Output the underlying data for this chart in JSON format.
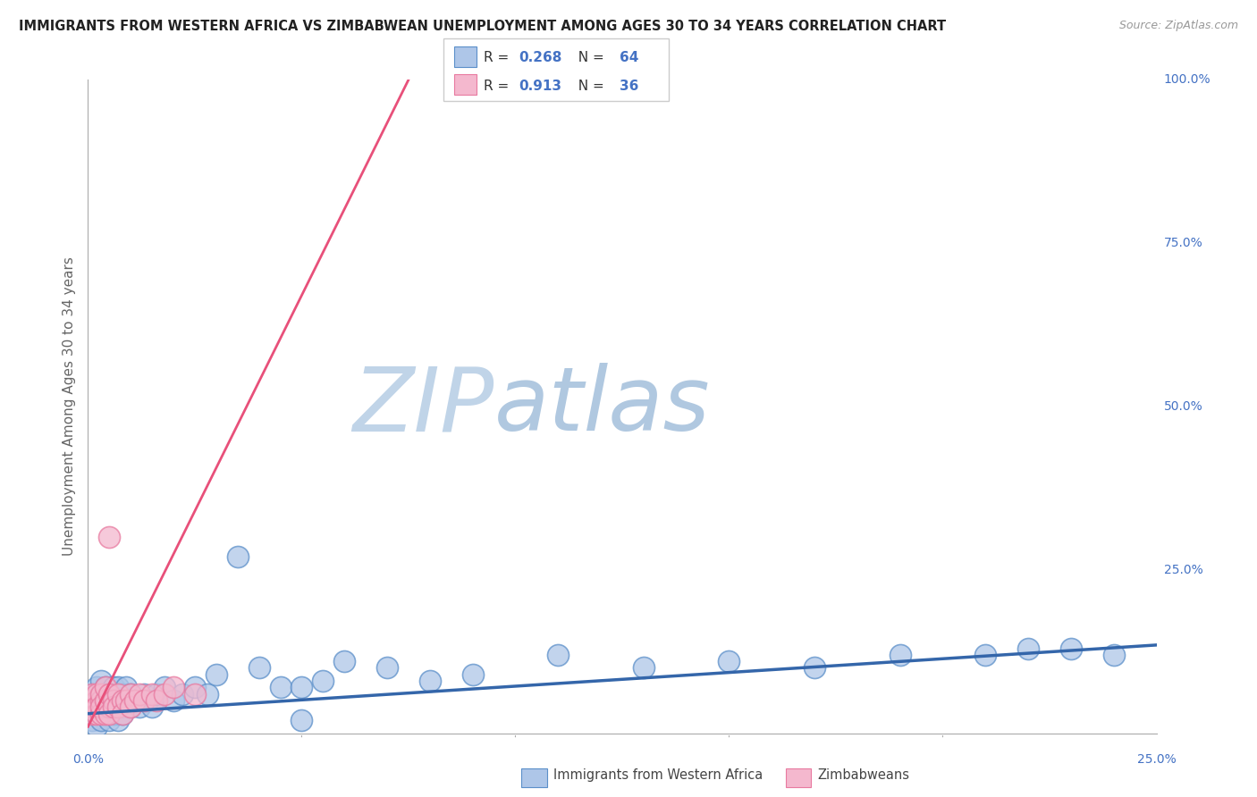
{
  "title": "IMMIGRANTS FROM WESTERN AFRICA VS ZIMBABWEAN UNEMPLOYMENT AMONG AGES 30 TO 34 YEARS CORRELATION CHART",
  "source": "Source: ZipAtlas.com",
  "y_label": "Unemployment Among Ages 30 to 34 years",
  "blue_R": 0.268,
  "blue_N": 64,
  "pink_R": 0.913,
  "pink_N": 36,
  "blue_color": "#aec6e8",
  "pink_color": "#f4b8ce",
  "blue_edge_color": "#5b8fc9",
  "pink_edge_color": "#e87aa0",
  "blue_line_color": "#3466aa",
  "pink_line_color": "#e8507a",
  "watermark_zip_color": "#c8d8ea",
  "watermark_atlas_color": "#b8cce0",
  "background_color": "#ffffff",
  "grid_color": "#cccccc",
  "text_color_blue": "#4472c4",
  "text_color_dark": "#333333",
  "xmin": 0.0,
  "xmax": 0.25,
  "ymin": 0.0,
  "ymax": 1.0,
  "blue_trend_x": [
    0.0,
    0.25
  ],
  "blue_trend_y": [
    0.03,
    0.135
  ],
  "pink_trend_x": [
    0.0,
    0.075
  ],
  "pink_trend_y": [
    0.01,
    1.0
  ],
  "blue_scatter_x": [
    0.001,
    0.001,
    0.001,
    0.002,
    0.002,
    0.002,
    0.002,
    0.003,
    0.003,
    0.003,
    0.003,
    0.004,
    0.004,
    0.004,
    0.005,
    0.005,
    0.005,
    0.006,
    0.006,
    0.006,
    0.006,
    0.006,
    0.007,
    0.007,
    0.007,
    0.007,
    0.008,
    0.008,
    0.008,
    0.009,
    0.009,
    0.01,
    0.01,
    0.011,
    0.012,
    0.013,
    0.014,
    0.015,
    0.016,
    0.018,
    0.02,
    0.022,
    0.025,
    0.028,
    0.03,
    0.035,
    0.04,
    0.045,
    0.05,
    0.055,
    0.06,
    0.07,
    0.08,
    0.09,
    0.11,
    0.13,
    0.15,
    0.17,
    0.19,
    0.21,
    0.22,
    0.23,
    0.24,
    0.05
  ],
  "blue_scatter_y": [
    0.04,
    0.06,
    0.02,
    0.05,
    0.03,
    0.07,
    0.01,
    0.04,
    0.06,
    0.02,
    0.08,
    0.05,
    0.03,
    0.07,
    0.04,
    0.06,
    0.02,
    0.05,
    0.03,
    0.07,
    0.04,
    0.06,
    0.03,
    0.05,
    0.02,
    0.07,
    0.04,
    0.06,
    0.03,
    0.05,
    0.07,
    0.04,
    0.06,
    0.05,
    0.04,
    0.06,
    0.05,
    0.04,
    0.06,
    0.07,
    0.05,
    0.06,
    0.07,
    0.06,
    0.09,
    0.27,
    0.1,
    0.07,
    0.07,
    0.08,
    0.11,
    0.1,
    0.08,
    0.09,
    0.12,
    0.1,
    0.11,
    0.1,
    0.12,
    0.12,
    0.13,
    0.13,
    0.12,
    0.02
  ],
  "pink_scatter_x": [
    0.001,
    0.001,
    0.001,
    0.001,
    0.002,
    0.002,
    0.002,
    0.002,
    0.003,
    0.003,
    0.003,
    0.003,
    0.004,
    0.004,
    0.004,
    0.005,
    0.005,
    0.005,
    0.006,
    0.006,
    0.007,
    0.007,
    0.008,
    0.008,
    0.009,
    0.01,
    0.01,
    0.011,
    0.012,
    0.013,
    0.015,
    0.016,
    0.018,
    0.02,
    0.025,
    0.005
  ],
  "pink_scatter_y": [
    0.05,
    0.03,
    0.06,
    0.04,
    0.05,
    0.03,
    0.06,
    0.04,
    0.05,
    0.03,
    0.06,
    0.04,
    0.05,
    0.03,
    0.07,
    0.04,
    0.06,
    0.03,
    0.05,
    0.04,
    0.06,
    0.04,
    0.05,
    0.03,
    0.05,
    0.06,
    0.04,
    0.05,
    0.06,
    0.05,
    0.06,
    0.05,
    0.06,
    0.07,
    0.06,
    0.3
  ]
}
